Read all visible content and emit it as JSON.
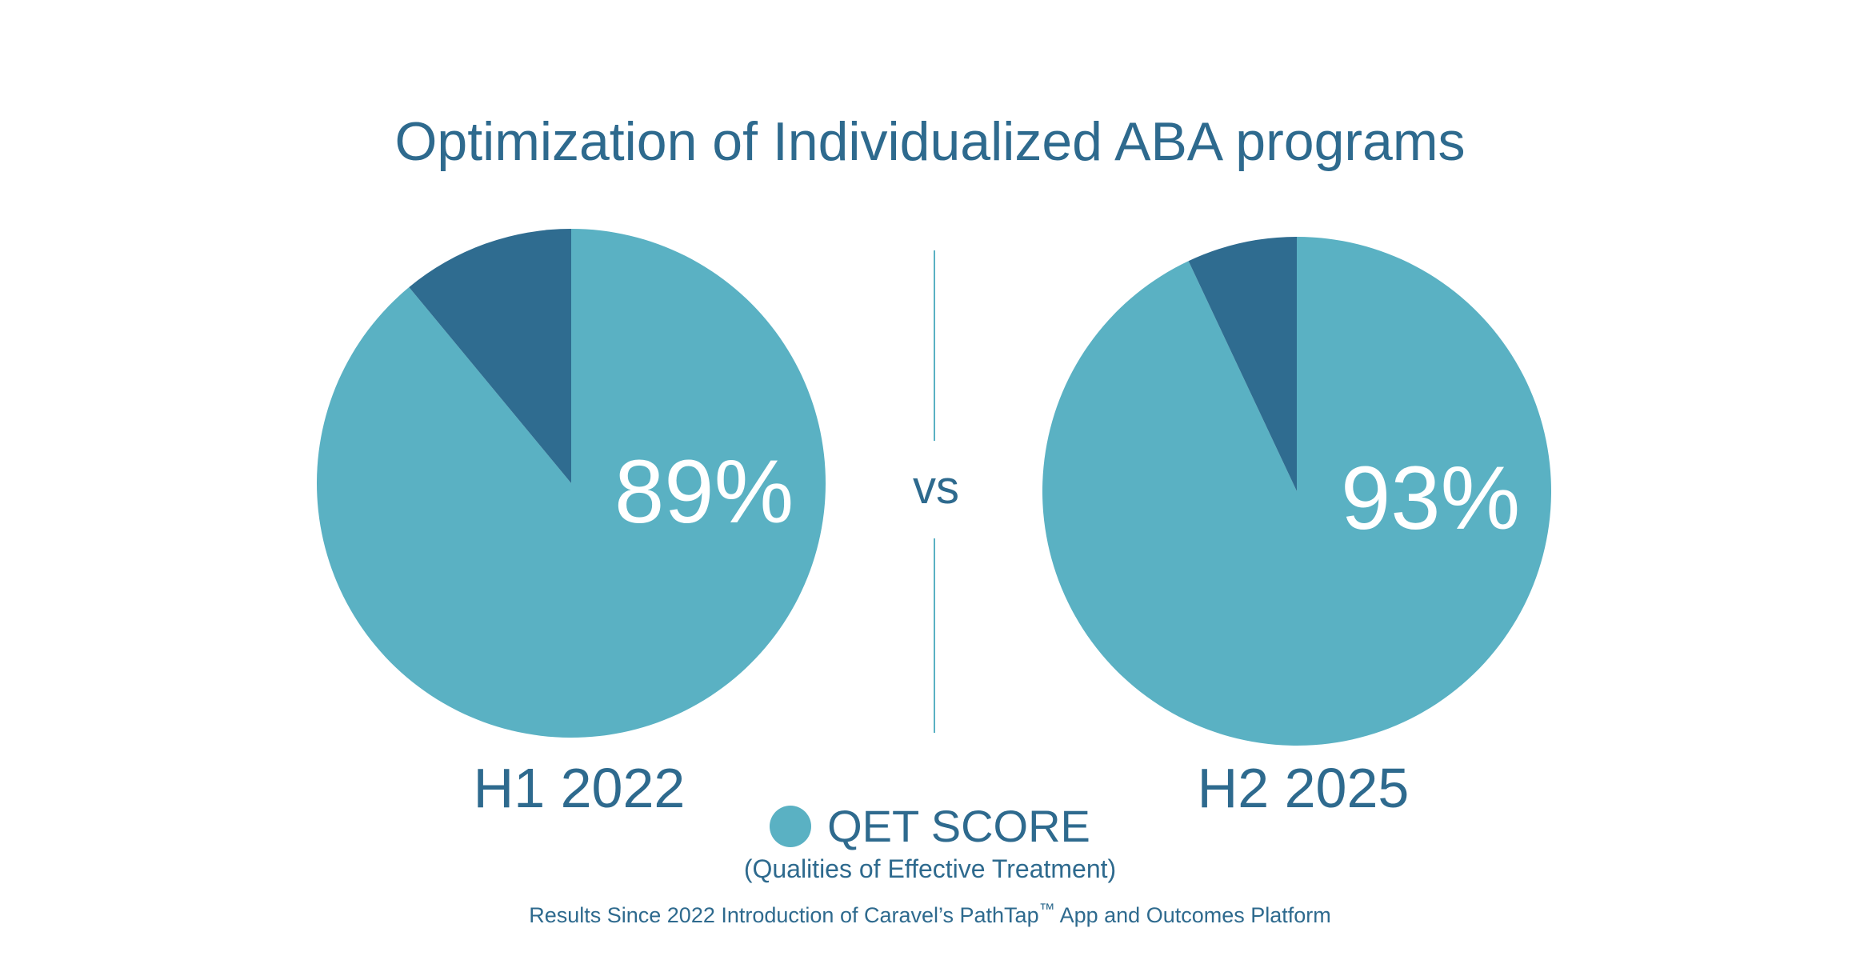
{
  "chart_data": [
    {
      "type": "pie",
      "title": "Optimization of Individualized ABA programs",
      "label": "H1 2022",
      "value_label": "89%",
      "slices": [
        {
          "name": "QET SCORE",
          "value": 89,
          "color": "#5ab1c3"
        },
        {
          "value": 11,
          "color": "#2f6c90"
        }
      ]
    },
    {
      "type": "pie",
      "label": "H2 2025",
      "value_label": "93%",
      "slices": [
        {
          "name": "QET SCORE",
          "value": 93,
          "color": "#5ab1c3"
        },
        {
          "value": 7,
          "color": "#2f6c90"
        }
      ]
    }
  ],
  "title": "Optimization of Individualized ABA programs",
  "separator": "vs",
  "legend": {
    "label": "QET SCORE",
    "color": "#5ab1c3",
    "position": "bottom-center"
  },
  "subtitle": "(Qualities of Effective Treatment)",
  "footer": {
    "before": "Results Since 2022 Introduction of Caravel’s PathTap",
    "tm": "™",
    "after": " App and Outcomes Platform"
  },
  "colors": {
    "text": "#2e6a8e",
    "accent": "#5ab1c3",
    "dark": "#2f6c90"
  }
}
